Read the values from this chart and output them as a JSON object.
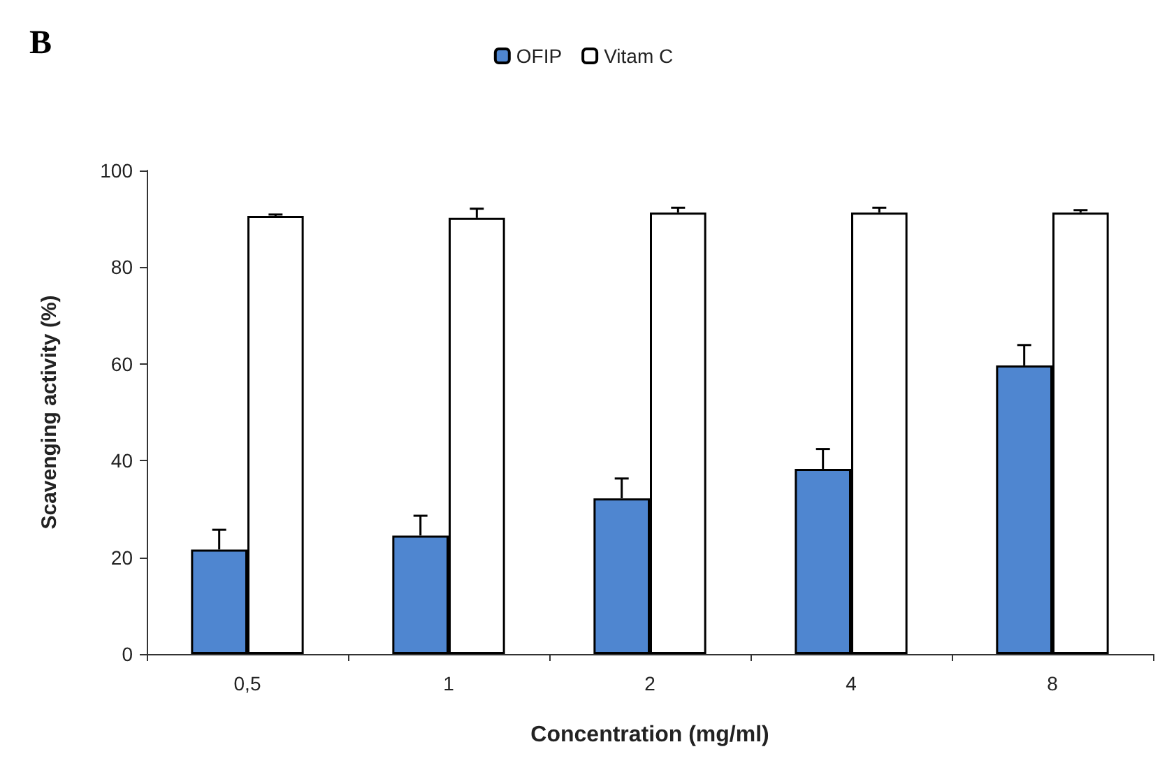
{
  "chart_data": {
    "type": "bar",
    "title": "B",
    "xlabel": "Concentration (mg/ml)",
    "ylabel": "Scavenging activity (%)",
    "categories": [
      "0,5",
      "1",
      "2",
      "4",
      "8"
    ],
    "series": [
      {
        "name": "OFIP",
        "color": "#4f86d0",
        "values": [
          21.6,
          24.5,
          32.2,
          38.3,
          59.7
        ],
        "errors": [
          [
            21.6,
            25.7
          ],
          [
            24.5,
            28.6
          ],
          [
            32.2,
            36.3
          ],
          [
            38.3,
            42.4
          ],
          [
            59.7,
            63.9
          ]
        ]
      },
      {
        "name": "Vitam C",
        "color": "#ffffff",
        "values": [
          90.6,
          90.2,
          91.3,
          91.3,
          91.3
        ],
        "errors": [
          [
            90.6,
            90.9
          ],
          [
            90.2,
            92.1
          ],
          [
            91.3,
            92.3
          ],
          [
            91.3,
            92.3
          ],
          [
            91.3,
            91.8
          ]
        ]
      }
    ],
    "ylim": [
      0,
      100
    ],
    "yticks": [
      0,
      20,
      40,
      60,
      80,
      100
    ],
    "grid": false,
    "legend": "top"
  }
}
